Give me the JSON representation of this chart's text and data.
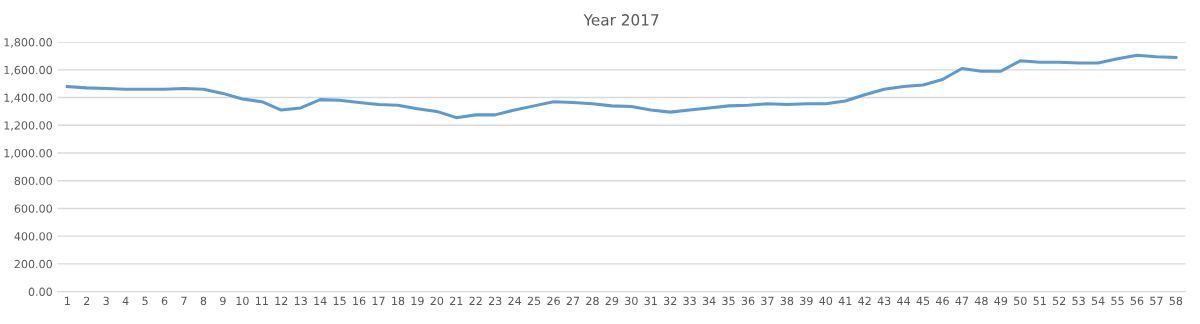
{
  "chart_data": {
    "type": "line",
    "title": "Year 2017",
    "categories": [
      "1",
      "2",
      "3",
      "4",
      "5",
      "6",
      "7",
      "8",
      "9",
      "10",
      "11",
      "12",
      "13",
      "14",
      "15",
      "16",
      "17",
      "18",
      "19",
      "20",
      "21",
      "22",
      "23",
      "24",
      "25",
      "26",
      "27",
      "28",
      "29",
      "30",
      "31",
      "32",
      "33",
      "34",
      "35",
      "36",
      "37",
      "38",
      "39",
      "40",
      "41",
      "42",
      "43",
      "44",
      "45",
      "46",
      "47",
      "48",
      "49",
      "50",
      "51",
      "52",
      "53",
      "54",
      "55",
      "56",
      "57",
      "58"
    ],
    "series": [
      {
        "color": "#5b9bd5",
        "values": [
          1480,
          1470,
          1465,
          1460,
          1460,
          1460,
          1465,
          1460,
          1430,
          1390,
          1370,
          1310,
          1325,
          1385,
          1380,
          1365,
          1350,
          1345,
          1320,
          1300,
          1255,
          1275,
          1275,
          1310,
          1340,
          1370,
          1365,
          1355,
          1340,
          1335,
          1310,
          1295,
          1310,
          1325,
          1340,
          1345,
          1355,
          1350,
          1355,
          1355,
          1375,
          1420,
          1460,
          1480,
          1490,
          1530,
          1610,
          1590,
          1590,
          1665,
          1655,
          1655,
          1650,
          1650,
          1680,
          1705,
          1695,
          1690
        ]
      }
    ],
    "ylim": [
      0,
      1800
    ],
    "yticks": [
      {
        "value": 0,
        "label": "0.00"
      },
      {
        "value": 200,
        "label": "200.00"
      },
      {
        "value": 400,
        "label": "400.00"
      },
      {
        "value": 600,
        "label": "600.00"
      },
      {
        "value": 800,
        "label": "800.00"
      },
      {
        "value": 1000,
        "label": "1,000.00"
      },
      {
        "value": 1200,
        "label": "1,200.00"
      },
      {
        "value": 1400,
        "label": "1,400.00"
      },
      {
        "value": 1600,
        "label": "1,600.00"
      },
      {
        "value": 1800,
        "label": "1,800.00"
      }
    ],
    "grid": "y",
    "marker": "none",
    "line_style": "solid"
  }
}
